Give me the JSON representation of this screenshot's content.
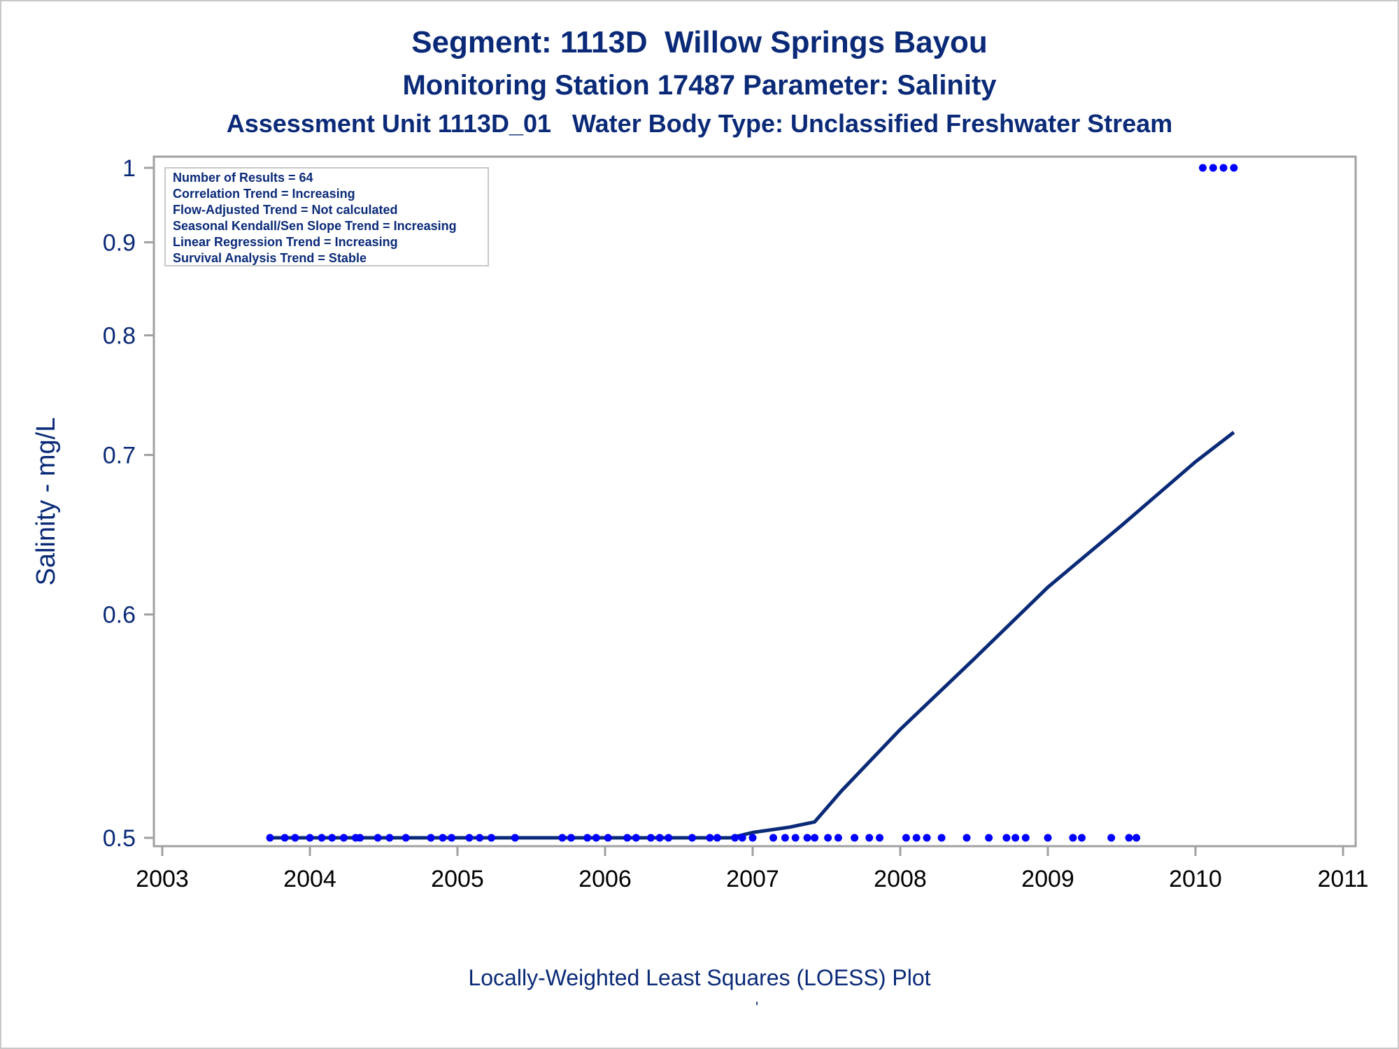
{
  "titles": {
    "line1": "Segment: 1113D  Willow Springs Bayou",
    "line2": "Monitoring Station 17487 Parameter: Salinity",
    "line3": "Assessment Unit 1113D_01   Water Body Type: Unclassified Freshwater Stream"
  },
  "caption": "Locally-Weighted Least Squares (LOESS) Plot",
  "footnote_mark": "'",
  "stats_box": [
    "Number of Results = 64",
    "Correlation Trend = Increasing",
    "Flow-Adjusted Trend = Not calculated",
    "Seasonal Kendall/Sen Slope Trend = Increasing",
    "Linear Regression Trend = Increasing",
    "Survival Analysis Trend = Stable"
  ],
  "colors": {
    "title": "#0a2a78",
    "points": "#0000ff",
    "loess": "#0a2a78",
    "frame": "#a0a0a0"
  },
  "chart_data": {
    "type": "scatter",
    "title": "Segment: 1113D  Willow Springs Bayou",
    "xlabel": "",
    "ylabel": "Salinity - mg/L",
    "xlim": [
      2003,
      2011
    ],
    "ylim": [
      0.5,
      1.0
    ],
    "y_scale": "reciprocal",
    "xticks": [
      "2003",
      "2004",
      "2005",
      "2006",
      "2007",
      "2008",
      "2009",
      "2010",
      "2011"
    ],
    "yticks": [
      "0.5",
      "0.6",
      "0.7",
      "0.8",
      "0.9",
      "1"
    ],
    "legend": "none",
    "grid": false,
    "series": [
      {
        "kind": "points",
        "x": [
          2003.73,
          2003.83,
          2003.9,
          2004.0,
          2004.08,
          2004.15,
          2004.23,
          2004.31,
          2004.34,
          2004.46,
          2004.54,
          2004.65,
          2004.82,
          2004.9,
          2004.96,
          2005.08,
          2005.15,
          2005.23,
          2005.39,
          2005.71,
          2005.77,
          2005.88,
          2005.94,
          2006.02,
          2006.15,
          2006.21,
          2006.31,
          2006.37,
          2006.43,
          2006.59,
          2006.71,
          2006.76,
          2006.88,
          2006.93,
          2007.0,
          2007.14,
          2007.22,
          2007.29,
          2007.37,
          2007.42,
          2007.51,
          2007.58,
          2007.69,
          2007.79,
          2007.86,
          2008.04,
          2008.11,
          2008.18,
          2008.28,
          2008.45,
          2008.6,
          2008.72,
          2008.78,
          2008.85,
          2009.0,
          2009.17,
          2009.23,
          2009.43,
          2009.55,
          2009.6,
          2010.05,
          2010.12,
          2010.19,
          2010.26
        ],
        "y": [
          0.5,
          0.5,
          0.5,
          0.5,
          0.5,
          0.5,
          0.5,
          0.5,
          0.5,
          0.5,
          0.5,
          0.5,
          0.5,
          0.5,
          0.5,
          0.5,
          0.5,
          0.5,
          0.5,
          0.5,
          0.5,
          0.5,
          0.5,
          0.5,
          0.5,
          0.5,
          0.5,
          0.5,
          0.5,
          0.5,
          0.5,
          0.5,
          0.5,
          0.5,
          0.5,
          0.5,
          0.5,
          0.5,
          0.5,
          0.5,
          0.5,
          0.5,
          0.5,
          0.5,
          0.5,
          0.5,
          0.5,
          0.5,
          0.5,
          0.5,
          0.5,
          0.5,
          0.5,
          0.5,
          0.5,
          0.5,
          0.5,
          0.5,
          0.5,
          0.5,
          1.0,
          1.0,
          1.0,
          1.0
        ]
      },
      {
        "kind": "loess_line",
        "x": [
          2003.73,
          2006.85,
          2007.0,
          2007.25,
          2007.42,
          2007.6,
          2008.0,
          2008.5,
          2009.0,
          2009.5,
          2010.0,
          2010.26
        ],
        "y": [
          0.5,
          0.5,
          0.502,
          0.504,
          0.506,
          0.518,
          0.544,
          0.577,
          0.615,
          0.652,
          0.695,
          0.717
        ]
      }
    ]
  }
}
